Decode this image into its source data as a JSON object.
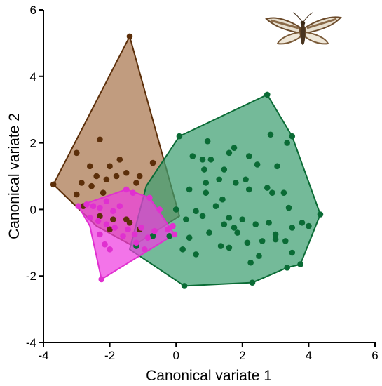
{
  "chart_data": {
    "type": "scatter",
    "title": "",
    "xlabel": "Canonical variate 1",
    "ylabel": "Canonical variate 2",
    "xlim": [
      -4,
      6
    ],
    "ylim": [
      -4,
      6
    ],
    "xticks": [
      "-4",
      "-2",
      "0",
      "2",
      "4",
      "6"
    ],
    "yticks": [
      "-4",
      "-2",
      "0",
      "2",
      "4",
      "6"
    ],
    "grid": false,
    "legend": "none",
    "series": [
      {
        "color": "#5c2f0a",
        "fill": "#a9764d",
        "points": [
          [
            -1.4,
            5.2
          ],
          [
            -3.7,
            0.75
          ],
          [
            -3.0,
            1.7
          ],
          [
            -2.3,
            2.1
          ],
          [
            -2.6,
            1.3
          ],
          [
            -2.4,
            1.0
          ],
          [
            -2.0,
            1.3
          ],
          [
            -1.7,
            1.5
          ],
          [
            -1.5,
            1.1
          ],
          [
            -1.8,
            1.0
          ],
          [
            -2.1,
            0.9
          ],
          [
            -2.55,
            0.7
          ],
          [
            -2.85,
            0.8
          ],
          [
            -3.0,
            0.45
          ],
          [
            -2.2,
            0.5
          ],
          [
            -1.2,
            0.8
          ],
          [
            -0.7,
            1.4
          ],
          [
            -1.1,
            1.0
          ],
          [
            -2.8,
            0.1
          ],
          [
            -2.3,
            -0.2
          ],
          [
            -1.9,
            -0.3
          ],
          [
            -1.4,
            -0.4
          ],
          [
            -1.1,
            -0.6
          ],
          [
            -2.0,
            -0.6
          ],
          [
            -1.5,
            -0.3
          ]
        ],
        "hull": [
          [
            -1.4,
            5.2
          ],
          [
            -3.7,
            0.75
          ],
          [
            -2.4,
            -0.5
          ],
          [
            -1.3,
            -1.1
          ],
          [
            0.1,
            -0.2
          ],
          [
            -1.4,
            5.2
          ]
        ]
      },
      {
        "color": "#0a6b35",
        "fill": "#3e9f72",
        "points": [
          [
            2.75,
            3.45
          ],
          [
            0.1,
            2.2
          ],
          [
            3.5,
            2.2
          ],
          [
            4.35,
            -0.15
          ],
          [
            3.75,
            -1.65
          ],
          [
            3.35,
            -1.75
          ],
          [
            2.3,
            -2.2
          ],
          [
            0.25,
            -2.3
          ],
          [
            -1.2,
            -1.1
          ],
          [
            -0.7,
            -0.8
          ],
          [
            -0.2,
            -0.8
          ],
          [
            0.5,
            1.6
          ],
          [
            0.8,
            1.5
          ],
          [
            1.05,
            1.5
          ],
          [
            1.6,
            1.7
          ],
          [
            1.75,
            1.85
          ],
          [
            2.2,
            1.6
          ],
          [
            2.85,
            2.25
          ],
          [
            3.35,
            2.0
          ],
          [
            3.05,
            1.3
          ],
          [
            0.85,
            1.2
          ],
          [
            0.9,
            0.8
          ],
          [
            1.45,
            1.2
          ],
          [
            2.1,
            0.9
          ],
          [
            2.75,
            0.65
          ],
          [
            3.25,
            0.5
          ],
          [
            0.4,
            0.6
          ],
          [
            0.9,
            0.5
          ],
          [
            1.4,
            0.3
          ],
          [
            1.8,
            0.8
          ],
          [
            2.2,
            0.6
          ],
          [
            2.9,
            0.5
          ],
          [
            3.4,
            0.05
          ],
          [
            3.8,
            -0.4
          ],
          [
            3.5,
            -0.55
          ],
          [
            0.0,
            0.0
          ],
          [
            0.3,
            -0.3
          ],
          [
            0.8,
            -0.2
          ],
          [
            1.2,
            0.1
          ],
          [
            1.6,
            -0.25
          ],
          [
            2.0,
            -0.3
          ],
          [
            2.4,
            -0.45
          ],
          [
            2.8,
            -0.4
          ],
          [
            3.0,
            -0.75
          ],
          [
            3.3,
            -0.95
          ],
          [
            0.4,
            -0.85
          ],
          [
            1.0,
            -0.7
          ],
          [
            1.35,
            -1.1
          ],
          [
            1.85,
            -0.7
          ],
          [
            2.15,
            -1.0
          ],
          [
            2.6,
            -0.95
          ],
          [
            3.0,
            -0.9
          ],
          [
            0.2,
            -1.2
          ],
          [
            0.6,
            -1.35
          ],
          [
            1.6,
            -1.15
          ],
          [
            2.25,
            -1.6
          ],
          [
            2.5,
            -1.4
          ],
          [
            3.5,
            -1.3
          ],
          [
            4.0,
            -0.5
          ],
          [
            1.75,
            -0.55
          ],
          [
            0.6,
            -0.05
          ],
          [
            1.45,
            -0.45
          ],
          [
            2.45,
            1.35
          ],
          [
            0.95,
            2.05
          ],
          [
            1.3,
            0.9
          ]
        ],
        "hull": [
          [
            2.75,
            3.45
          ],
          [
            3.5,
            2.2
          ],
          [
            4.35,
            -0.15
          ],
          [
            3.75,
            -1.65
          ],
          [
            3.35,
            -1.75
          ],
          [
            2.3,
            -2.2
          ],
          [
            0.25,
            -2.3
          ],
          [
            -1.4,
            -1.2
          ],
          [
            -0.9,
            0.7
          ],
          [
            0.1,
            2.2
          ],
          [
            2.75,
            3.45
          ]
        ]
      },
      {
        "color": "#e030d0",
        "fill": "#ee3ee0",
        "points": [
          [
            -2.95,
            0.1
          ],
          [
            -2.7,
            0.15
          ],
          [
            -2.5,
            0.1
          ],
          [
            -2.3,
            0.05
          ],
          [
            -2.1,
            0.25
          ],
          [
            -1.9,
            -0.05
          ],
          [
            -1.7,
            0.1
          ],
          [
            -1.5,
            0.6
          ],
          [
            -1.3,
            0.5
          ],
          [
            -0.8,
            0.35
          ],
          [
            -0.5,
            0.0
          ],
          [
            -2.6,
            -0.25
          ],
          [
            -2.35,
            -0.35
          ],
          [
            -2.1,
            -0.45
          ],
          [
            -1.85,
            -0.55
          ],
          [
            -1.6,
            -0.8
          ],
          [
            -1.45,
            -0.6
          ],
          [
            -1.25,
            -0.75
          ],
          [
            -1.05,
            -0.55
          ],
          [
            -0.85,
            -0.85
          ],
          [
            -0.65,
            -0.65
          ],
          [
            -0.25,
            -0.6
          ],
          [
            -0.1,
            -0.5
          ],
          [
            -2.3,
            -0.75
          ],
          [
            -2.15,
            -1.05
          ],
          [
            -2.0,
            -1.2
          ],
          [
            -1.2,
            -1.0
          ],
          [
            -0.95,
            -1.2
          ],
          [
            -2.25,
            -2.1
          ],
          [
            -0.05,
            -0.75
          ]
        ],
        "hull": [
          [
            -2.95,
            0.1
          ],
          [
            -1.5,
            0.6
          ],
          [
            -0.8,
            0.35
          ],
          [
            -0.05,
            -0.75
          ],
          [
            -2.25,
            -2.1
          ],
          [
            -2.6,
            -0.5
          ],
          [
            -2.95,
            0.1
          ]
        ]
      }
    ]
  },
  "image": {
    "icon": "moth-icon"
  }
}
